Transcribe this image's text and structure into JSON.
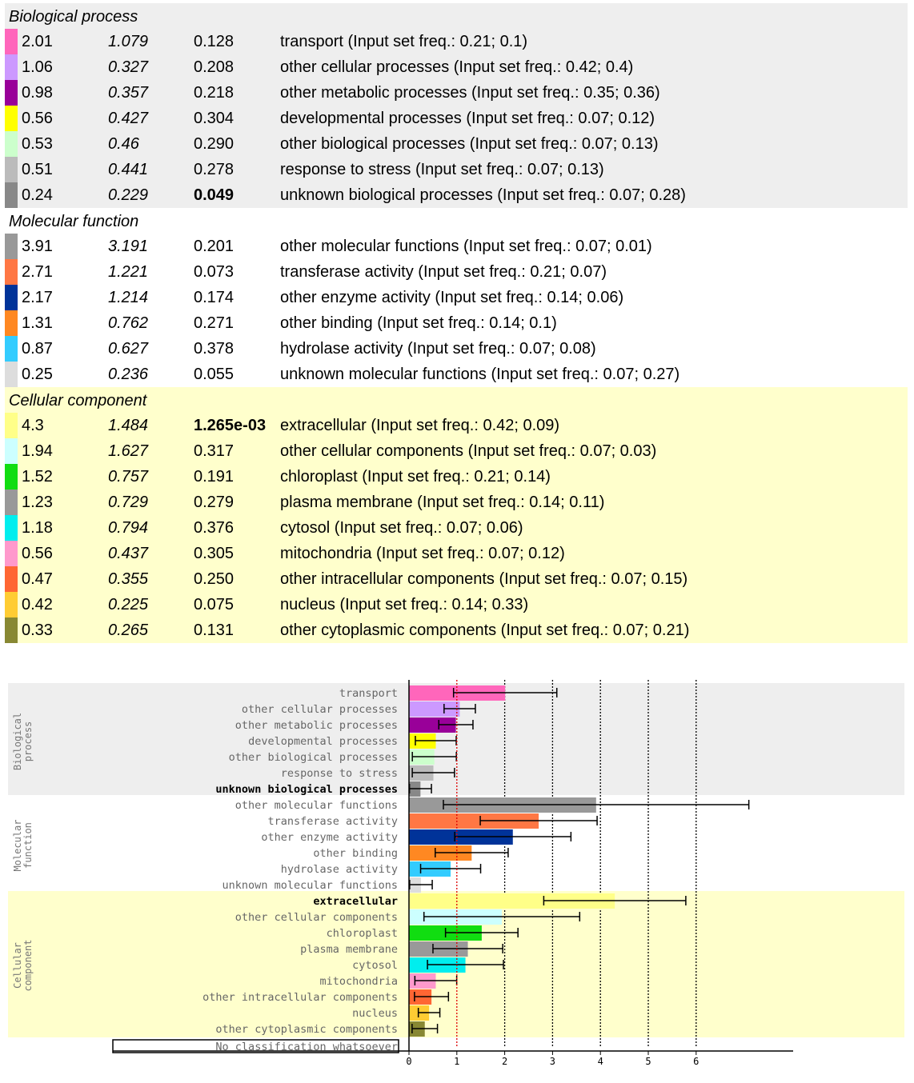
{
  "sections": [
    {
      "title": "Biological process",
      "chart_title": "Biological process",
      "bg": "#eeeeee",
      "rows": [
        {
          "ratio": "2.01",
          "err": "1.079",
          "p": "0.128",
          "label": "transport",
          "desc": "transport (Input set freq.: 0.21; 0.1)",
          "color": "#ff66bb",
          "bold": false
        },
        {
          "ratio": "1.06",
          "err": "0.327",
          "p": "0.208",
          "label": "other cellular processes",
          "desc": "other cellular processes (Input set freq.: 0.42; 0.4)",
          "color": "#cc99ff",
          "bold": false
        },
        {
          "ratio": "0.98",
          "err": "0.357",
          "p": "0.218",
          "label": "other metabolic processes",
          "desc": "other metabolic processes (Input set freq.: 0.35; 0.36)",
          "color": "#990099",
          "bold": false
        },
        {
          "ratio": "0.56",
          "err": "0.427",
          "p": "0.304",
          "label": "developmental processes",
          "desc": "developmental processes (Input set freq.: 0.07; 0.12)",
          "color": "#ffff00",
          "bold": false
        },
        {
          "ratio": "0.53",
          "err": "0.46",
          "p": "0.290",
          "label": "other biological processes",
          "desc": "other biological processes (Input set freq.: 0.07; 0.13)",
          "color": "#ccffcc",
          "bold": false
        },
        {
          "ratio": "0.51",
          "err": "0.441",
          "p": "0.278",
          "label": "response to stress",
          "desc": "response to stress (Input set freq.: 0.07; 0.13)",
          "color": "#bbbbbb",
          "bold": false
        },
        {
          "ratio": "0.24",
          "err": "0.229",
          "p": "0.049",
          "label": "unknown biological processes",
          "desc": "unknown biological processes (Input set freq.: 0.07; 0.28)",
          "color": "#888888",
          "bold": true
        }
      ]
    },
    {
      "title": "Molecular function",
      "chart_title": "Molecular function",
      "bg": "#ffffff",
      "rows": [
        {
          "ratio": "3.91",
          "err": "3.191",
          "p": "0.201",
          "label": "other molecular functions",
          "desc": "other molecular functions (Input set freq.: 0.07; 0.01)",
          "color": "#999999",
          "bold": false
        },
        {
          "ratio": "2.71",
          "err": "1.221",
          "p": "0.073",
          "label": "transferase activity",
          "desc": "transferase activity (Input set freq.: 0.21; 0.07)",
          "color": "#ff7744",
          "bold": false
        },
        {
          "ratio": "2.17",
          "err": "1.214",
          "p": "0.174",
          "label": "other enzyme activity",
          "desc": "other enzyme activity (Input set freq.: 0.14; 0.06)",
          "color": "#003399",
          "bold": false
        },
        {
          "ratio": "1.31",
          "err": "0.762",
          "p": "0.271",
          "label": "other binding",
          "desc": "other binding (Input set freq.: 0.14; 0.1)",
          "color": "#ff8822",
          "bold": false
        },
        {
          "ratio": "0.87",
          "err": "0.627",
          "p": "0.378",
          "label": "hydrolase activity",
          "desc": "hydrolase activity (Input set freq.: 0.07; 0.08)",
          "color": "#33ccff",
          "bold": false
        },
        {
          "ratio": "0.25",
          "err": "0.236",
          "p": "0.055",
          "label": "unknown molecular functions",
          "desc": "unknown molecular functions (Input set freq.: 0.07; 0.27)",
          "color": "#dddddd",
          "bold": false
        }
      ]
    },
    {
      "title": "Cellular component",
      "chart_title": "Cellular component",
      "bg": "#ffffcc",
      "rows": [
        {
          "ratio": "4.3",
          "err": "1.484",
          "p": "1.265e-03",
          "label": "extracellular",
          "desc": "extracellular (Input set freq.: 0.42; 0.09)",
          "color": "#ffff88",
          "bold": true
        },
        {
          "ratio": "1.94",
          "err": "1.627",
          "p": "0.317",
          "label": "other cellular components",
          "desc": "other cellular components (Input set freq.: 0.07; 0.03)",
          "color": "#ccffff",
          "bold": false
        },
        {
          "ratio": "1.52",
          "err": "0.757",
          "p": "0.191",
          "label": "chloroplast",
          "desc": "chloroplast (Input set freq.: 0.21; 0.14)",
          "color": "#11dd11",
          "bold": false
        },
        {
          "ratio": "1.23",
          "err": "0.729",
          "p": "0.279",
          "label": "plasma membrane",
          "desc": "plasma membrane (Input set freq.: 0.14; 0.11)",
          "color": "#999999",
          "bold": false
        },
        {
          "ratio": "1.18",
          "err": "0.794",
          "p": "0.376",
          "label": "cytosol",
          "desc": "cytosol (Input set freq.: 0.07; 0.06)",
          "color": "#00eeee",
          "bold": false
        },
        {
          "ratio": "0.56",
          "err": "0.437",
          "p": "0.305",
          "label": "mitochondria",
          "desc": "mitochondria (Input set freq.: 0.07; 0.12)",
          "color": "#ff99cc",
          "bold": false
        },
        {
          "ratio": "0.47",
          "err": "0.355",
          "p": "0.250",
          "label": "other intracellular components",
          "desc": "other intracellular components (Input set freq.: 0.07; 0.15)",
          "color": "#ff6633",
          "bold": false
        },
        {
          "ratio": "0.42",
          "err": "0.225",
          "p": "0.075",
          "label": "nucleus",
          "desc": "nucleus (Input set freq.: 0.14; 0.33)",
          "color": "#ffcc33",
          "bold": false
        },
        {
          "ratio": "0.33",
          "err": "0.265",
          "p": "0.131",
          "label": "other cytoplasmic components",
          "desc": "other cytoplasmic components (Input set freq.: 0.07; 0.21)",
          "color": "#888833",
          "bold": false
        }
      ]
    }
  ],
  "chart_data": {
    "type": "bar",
    "orientation": "horizontal",
    "x_ticks": [
      "0",
      "1",
      "2",
      "3",
      "4",
      "5",
      "6"
    ],
    "xlim": [
      0,
      8
    ],
    "reference_line": 1,
    "no_class_label": "No classification whatsoever",
    "categories": [
      "transport",
      "other cellular processes",
      "other metabolic processes",
      "developmental processes",
      "other biological processes",
      "response to stress",
      "unknown biological processes",
      "other molecular functions",
      "transferase activity",
      "other enzyme activity",
      "other binding",
      "hydrolase activity",
      "unknown molecular functions",
      "extracellular",
      "other cellular components",
      "chloroplast",
      "plasma membrane",
      "cytosol",
      "mitochondria",
      "other intracellular components",
      "nucleus",
      "other cytoplasmic components"
    ],
    "values": [
      2.01,
      1.06,
      0.98,
      0.56,
      0.53,
      0.51,
      0.24,
      3.91,
      2.71,
      2.17,
      1.31,
      0.87,
      0.25,
      4.3,
      1.94,
      1.52,
      1.23,
      1.18,
      0.56,
      0.47,
      0.42,
      0.33
    ],
    "errors": [
      1.079,
      0.327,
      0.357,
      0.427,
      0.46,
      0.441,
      0.229,
      3.191,
      1.221,
      1.214,
      0.762,
      0.627,
      0.236,
      1.484,
      1.627,
      0.757,
      0.729,
      0.794,
      0.437,
      0.355,
      0.225,
      0.265
    ]
  }
}
